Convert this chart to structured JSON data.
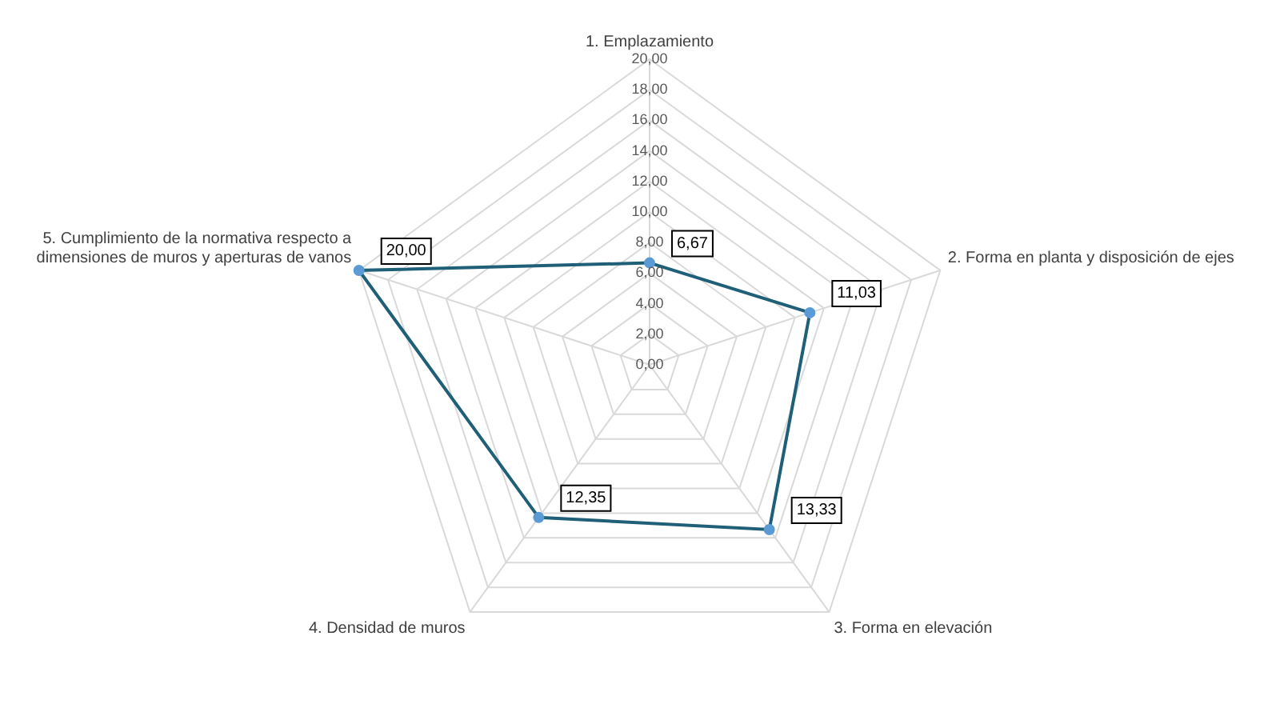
{
  "chart_data": {
    "type": "radar",
    "categories": [
      "1. Emplazamiento",
      "2. Forma en planta y disposición de ejes",
      "3. Forma en elevación",
      "4. Densidad de muros",
      "5. Cumplimiento de la normativa respecto a dimensiones de muros y aperturas de vanos"
    ],
    "series": [
      {
        "color": "#205f78",
        "values": [
          6.67,
          11.03,
          13.33,
          12.35,
          20.0
        ],
        "value_labels": [
          "6,67",
          "11,03",
          "13,33",
          "12,35",
          "20,00"
        ]
      }
    ],
    "ylim": [
      0,
      20
    ],
    "yticks": [
      {
        "value": 0,
        "label": "0,00"
      },
      {
        "value": 2,
        "label": "2,00"
      },
      {
        "value": 4,
        "label": "4,00"
      },
      {
        "value": 6,
        "label": "6,00"
      },
      {
        "value": 8,
        "label": "8,00"
      },
      {
        "value": 10,
        "label": "10,00"
      },
      {
        "value": 12,
        "label": "12,00"
      },
      {
        "value": 14,
        "label": "14,00"
      },
      {
        "value": 16,
        "label": "16,00"
      },
      {
        "value": 18,
        "label": "18,00"
      },
      {
        "value": 20,
        "label": "20,00"
      }
    ],
    "grid": true,
    "legend": false,
    "marker": "circle",
    "line_style": "solid"
  }
}
